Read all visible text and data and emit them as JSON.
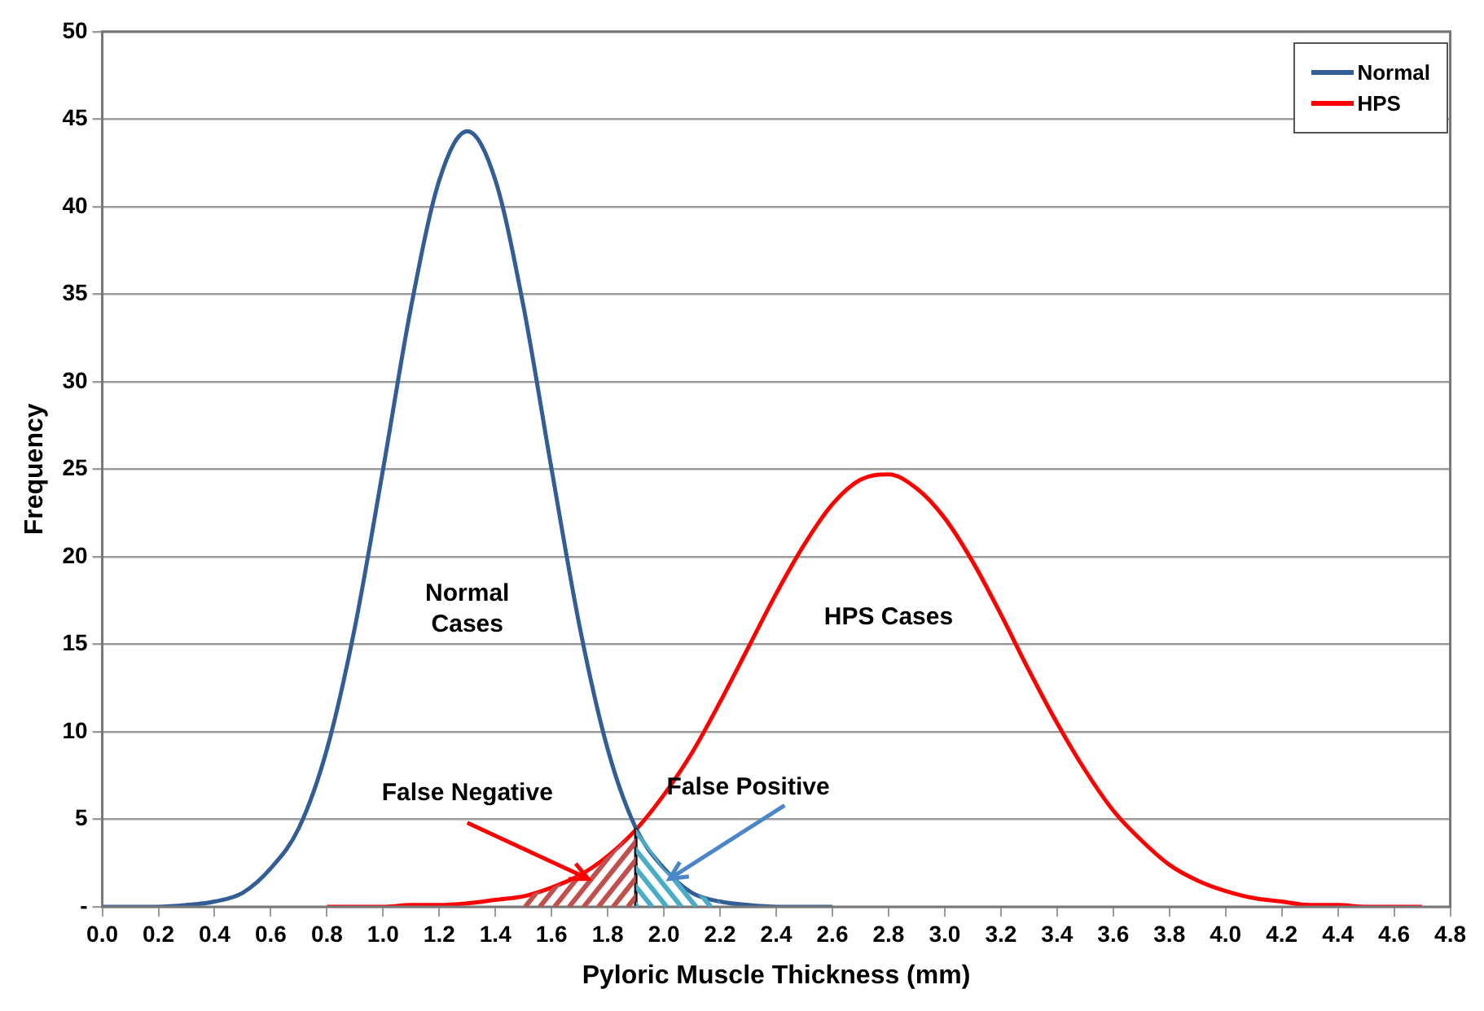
{
  "chart_data": {
    "type": "line",
    "xlabel": "Pyloric Muscle Thickness (mm)",
    "ylabel": "Frequency",
    "xlim": [
      0,
      4.8
    ],
    "xticks": [
      {
        "value": 0,
        "label": "0.0"
      },
      0.2,
      0.4,
      0.6,
      0.8,
      {
        "value": 1,
        "label": "1.0"
      },
      1.2,
      1.4,
      1.6,
      1.8,
      {
        "value": 2,
        "label": "2.0"
      },
      2.2,
      2.4,
      2.6,
      2.8,
      {
        "value": 3,
        "label": "3.0"
      },
      3.2,
      3.4,
      3.6,
      3.8,
      {
        "value": 4,
        "label": "4.0"
      },
      4.2,
      4.4,
      4.6,
      4.8
    ],
    "ylim": [
      0,
      50
    ],
    "yticks": [
      {
        "value": 0,
        "label": "-"
      },
      5,
      10,
      15,
      20,
      25,
      30,
      35,
      40,
      45,
      50
    ],
    "grid": "y",
    "legend": "top right",
    "marker": "none",
    "line_style": "solid",
    "series": [
      {
        "name": "Normal",
        "color": "#325d95",
        "x": [
          0,
          0.1,
          0.2,
          0.3,
          0.4,
          0.5,
          0.6,
          0.7,
          0.8,
          0.9,
          1,
          1.1,
          1.2,
          1.3,
          1.4,
          1.5,
          1.6,
          1.7,
          1.8,
          1.9,
          2,
          2.1,
          2.2,
          2.3,
          2.4,
          2.5,
          2.6
        ],
        "values": [
          0,
          0,
          0,
          0.1,
          0.3,
          0.8,
          2.2,
          4.5,
          9,
          16,
          25,
          34.3,
          41.5,
          44.3,
          41.5,
          34.3,
          25,
          16,
          9,
          4.5,
          2.2,
          0.8,
          0.3,
          0.1,
          0,
          0,
          0
        ]
      },
      {
        "name": "HPS",
        "color": "#ff0000",
        "x": [
          0.8,
          0.9,
          1,
          1.1,
          1.2,
          1.3,
          1.4,
          1.5,
          1.6,
          1.7,
          1.8,
          1.9,
          2,
          2.1,
          2.2,
          2.3,
          2.4,
          2.5,
          2.6,
          2.7,
          2.8,
          2.9,
          3,
          3.1,
          3.2,
          3.3,
          3.4,
          3.5,
          3.6,
          3.7,
          3.8,
          3.9,
          4,
          4.1,
          4.2,
          4.3,
          4.4,
          4.5,
          4.6,
          4.7
        ],
        "values": [
          0,
          0,
          0,
          0.1,
          0.1,
          0.2,
          0.4,
          0.6,
          1.1,
          1.8,
          2.9,
          4.4,
          6.4,
          8.8,
          11.7,
          14.8,
          17.9,
          20.7,
          23,
          24.4,
          24.7,
          23.9,
          22.2,
          19.7,
          16.7,
          13.5,
          10.5,
          7.8,
          5.5,
          3.8,
          2.4,
          1.5,
          0.9,
          0.5,
          0.3,
          0.1,
          0.1,
          0,
          0,
          0
        ]
      }
    ],
    "ref_lines": [
      {
        "axis": "x",
        "value": 1.9,
        "color": "#000000"
      }
    ],
    "annotations": [
      "Normal Cases",
      "HPS Cases",
      {
        "text": "False Negative",
        "x": 1.73,
        "y": 1.6
      },
      {
        "text": "False Positive",
        "x": 2.02,
        "y": 1.6
      }
    ]
  }
}
